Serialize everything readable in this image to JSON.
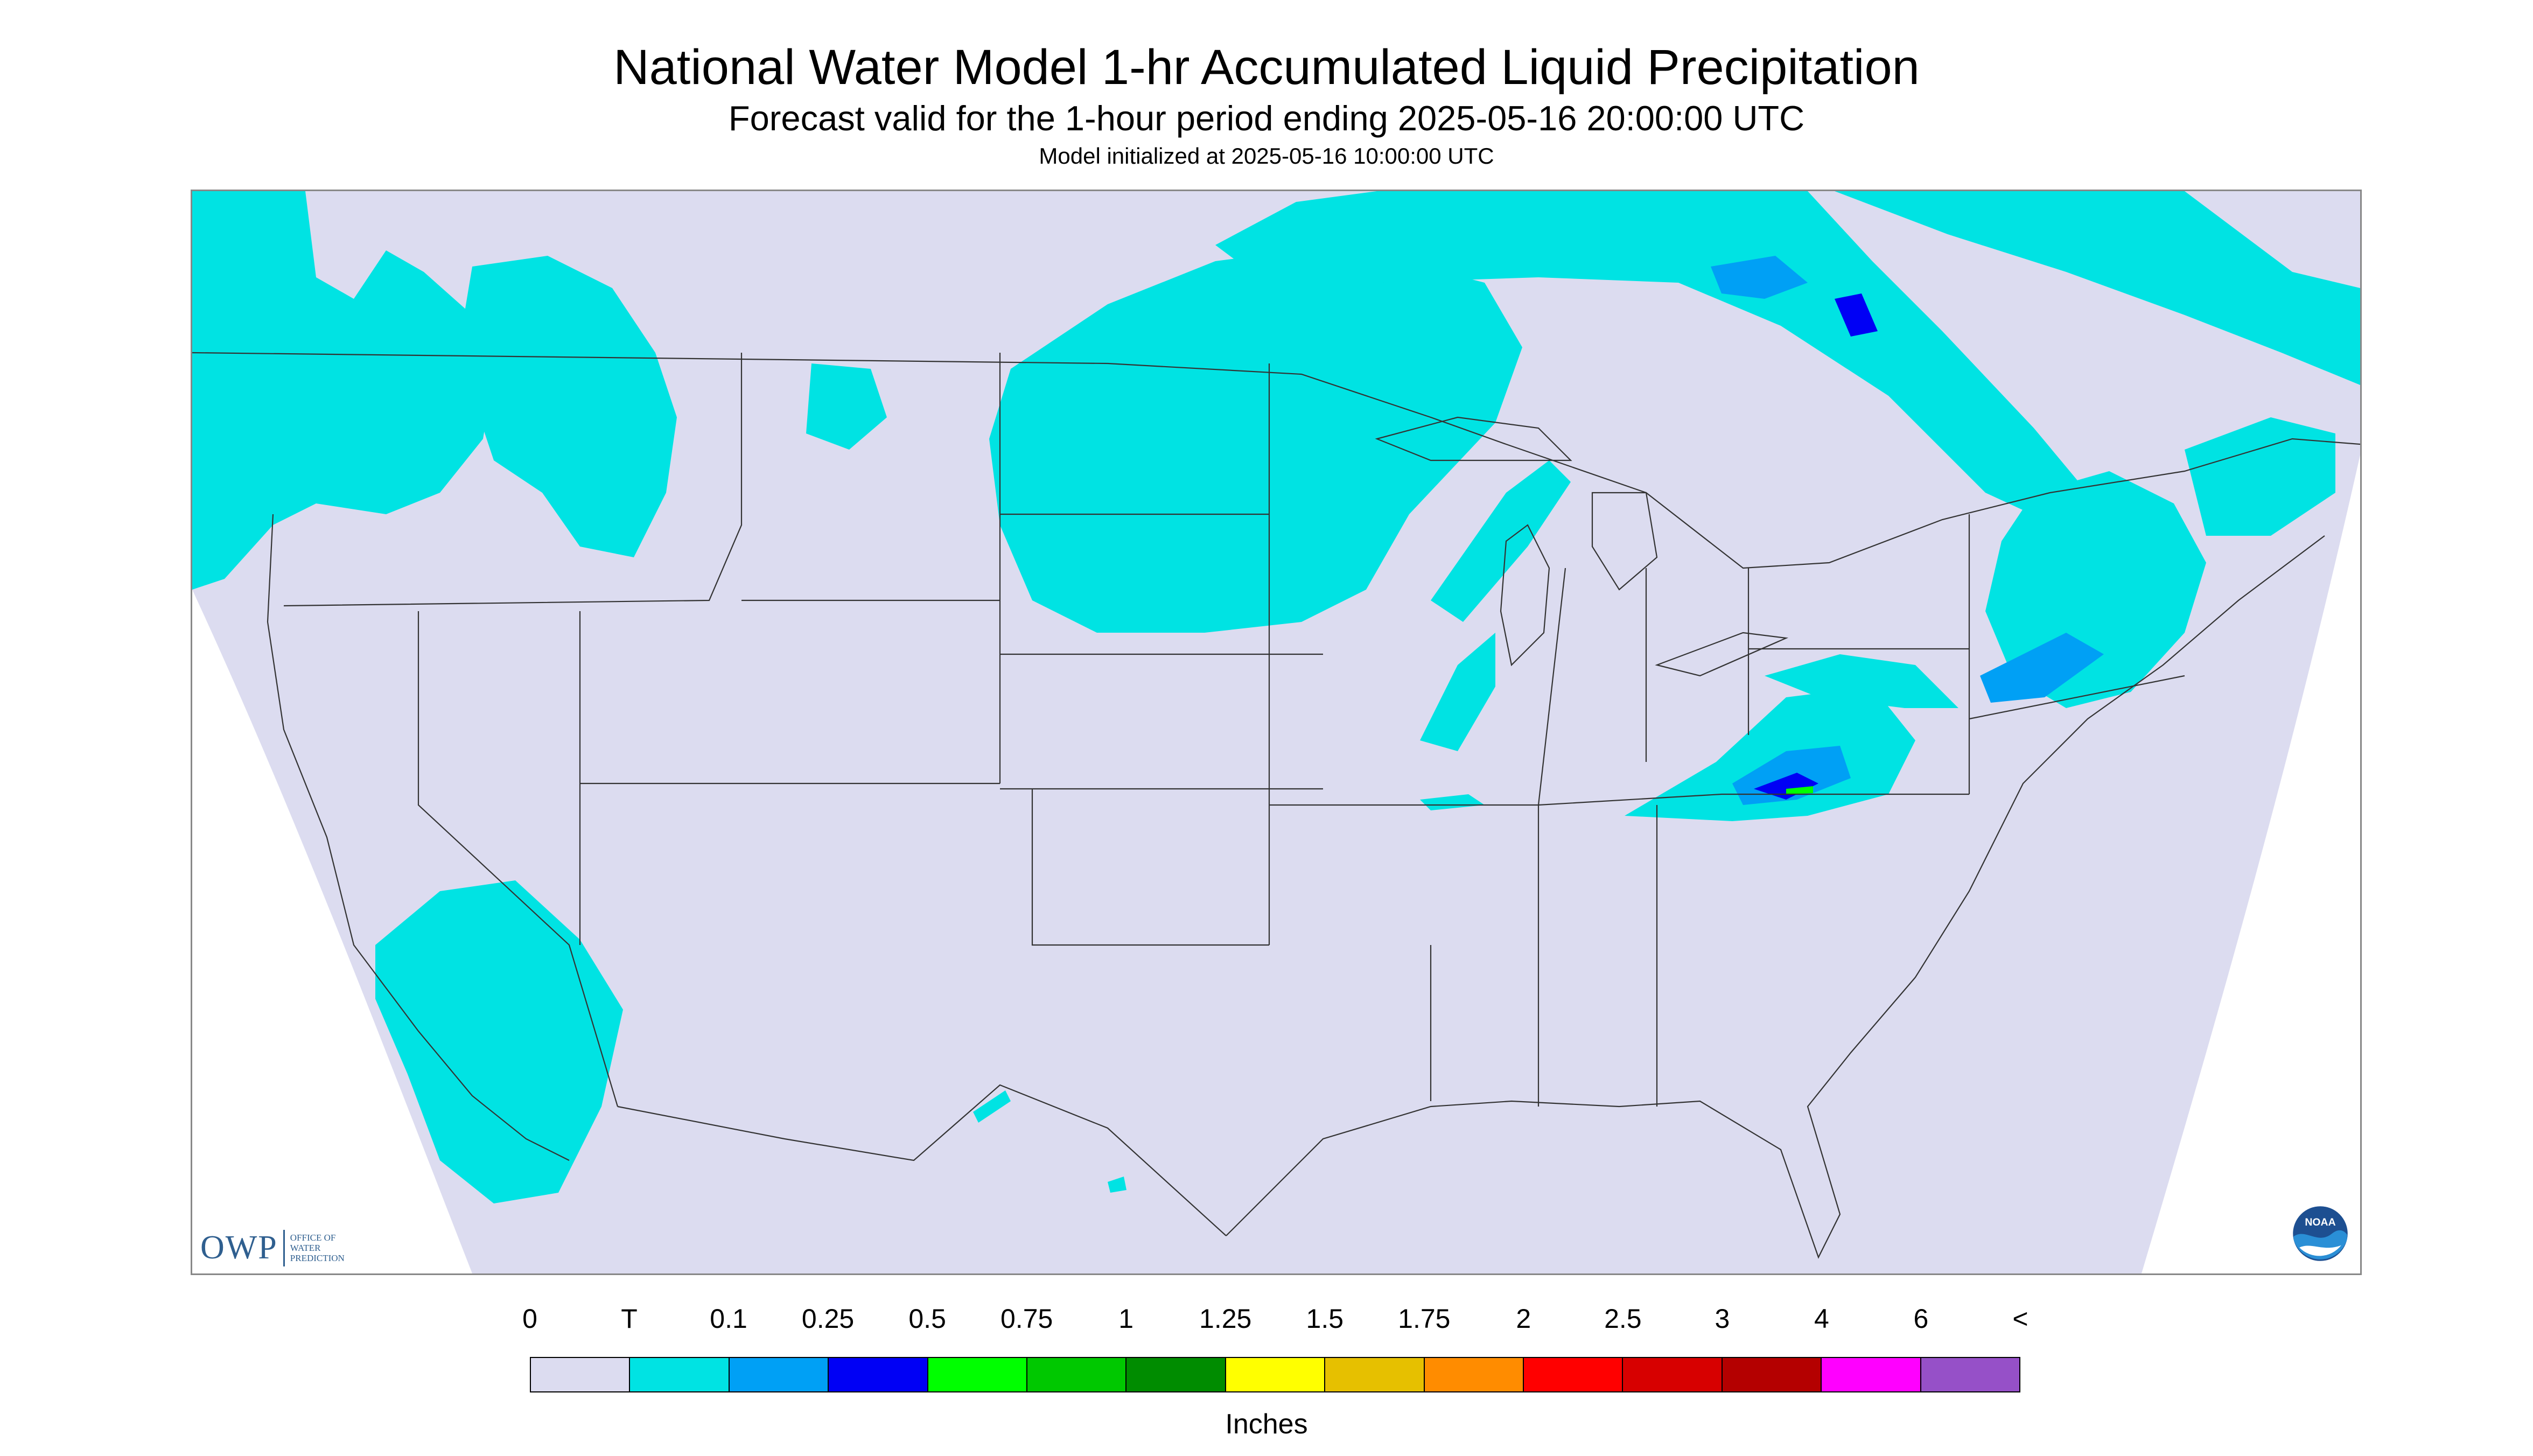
{
  "header": {
    "title": "National Water Model 1-hr Accumulated Liquid Precipitation",
    "subtitle": "Forecast valid for the 1-hour period ending 2025-05-16 20:00:00 UTC",
    "init": "Model initialized at 2025-05-16 10:00:00 UTC"
  },
  "map": {
    "domain_color": "#dcdcf0",
    "border_color": "#333333",
    "logos": {
      "owp_letters": "OWP",
      "owp_words": [
        "OFFICE OF",
        "WATER",
        "PREDICTION"
      ],
      "noaa": "NOAA"
    }
  },
  "legend": {
    "tick_labels": [
      "0",
      "T",
      "0.1",
      "0.25",
      "0.5",
      "0.75",
      "1",
      "1.25",
      "1.5",
      "1.75",
      "2",
      "2.5",
      "3",
      "4",
      "6",
      "<"
    ],
    "colors": [
      "#dcdcf0",
      "#00e3e3",
      "#00a0f5",
      "#0000f5",
      "#00ff00",
      "#00c800",
      "#008c00",
      "#ffff00",
      "#e6c000",
      "#ff8c00",
      "#ff0000",
      "#d70000",
      "#b40000",
      "#ff00ff",
      "#9650c8"
    ],
    "units": "Inches"
  },
  "precip_colors": {
    "trace": "#00e3e3",
    "light": "#00a0f5",
    "moderate": "#0000f5",
    "heavy": "#00ff00"
  }
}
